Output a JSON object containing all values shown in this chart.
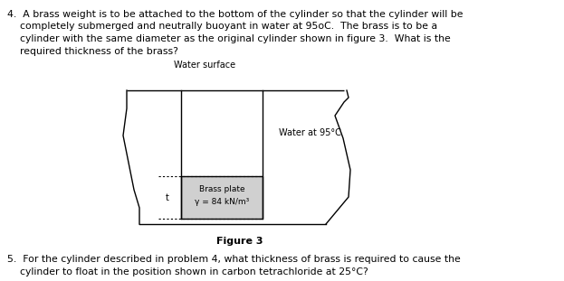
{
  "background_color": "#ffffff",
  "text_color": "#000000",
  "problem4_line1": "4.  A brass weight is to be attached to the bottom of the cylinder so that the cylinder will be",
  "problem4_line2": "    completely submerged and neutrally buoyant in water at 95oC.  The brass is to be a",
  "problem4_line3": "    cylinder with the same diameter as the original cylinder shown in figure 3.  What is the",
  "problem4_line4": "    required thickness of the brass?",
  "water_surface_label": "Water surface",
  "water_label": "Water at 95°C",
  "brass_label": "Brass plate",
  "gamma_label": "γ = 84 kN/m³",
  "t_label": "t",
  "figure_caption": "Figure 3",
  "problem5_line1": "5.  For the cylinder described in problem 4, what thickness of brass is required to cause the",
  "problem5_line2": "    cylinder to float in the position shown in carbon tetrachloride at 25°C?",
  "fig_width": 6.23,
  "fig_height": 3.11,
  "dpi": 100
}
